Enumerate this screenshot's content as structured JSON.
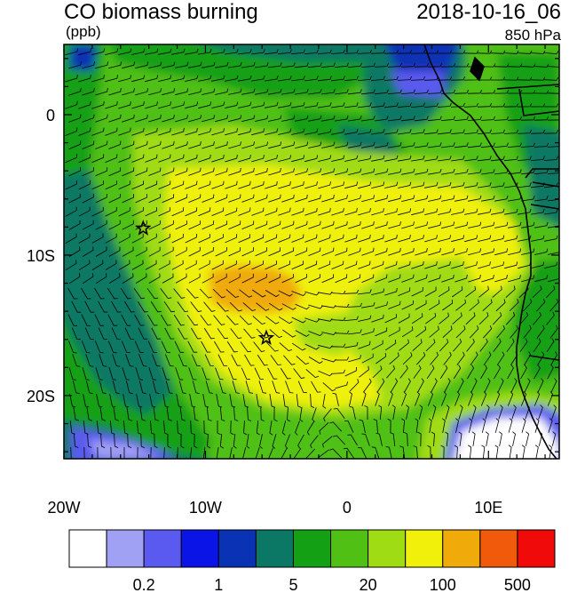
{
  "header": {
    "title": "CO biomass burning",
    "units": "(ppb)",
    "datetime": "2018-10-16_06",
    "level": "850 hPa"
  },
  "axes": {
    "x_ticks": [
      {
        "label": "20W",
        "lon": -20
      },
      {
        "label": "10W",
        "lon": -10
      },
      {
        "label": "0",
        "lon": 0
      },
      {
        "label": "10E",
        "lon": 10
      }
    ],
    "y_ticks": [
      {
        "label": "0",
        "lat": 0
      },
      {
        "label": "10S",
        "lat": -10
      },
      {
        "label": "20S",
        "lat": -20
      }
    ],
    "lon_range": [
      -20,
      15
    ],
    "lat_range": [
      -24.5,
      5
    ]
  },
  "colorbar": {
    "colors": [
      "#ffffff",
      "#a0a0f4",
      "#5a5af0",
      "#0a14e6",
      "#0a32b4",
      "#0a7864",
      "#14a014",
      "#50c014",
      "#a0dc14",
      "#f0f00a",
      "#f0aa0a",
      "#f05a0a",
      "#f00a0a"
    ],
    "labels": [
      {
        "text": "0.2",
        "boundary": 2
      },
      {
        "text": "1",
        "boundary": 4
      },
      {
        "text": "5",
        "boundary": 6
      },
      {
        "text": "20",
        "boundary": 8
      },
      {
        "text": "100",
        "boundary": 10
      },
      {
        "text": "500",
        "boundary": 12
      }
    ]
  },
  "markers": [
    {
      "name": "star-marker",
      "lon": -14.4,
      "lat": -8.1
    },
    {
      "name": "star-marker",
      "lon": -5.7,
      "lat": -15.9
    }
  ]
}
